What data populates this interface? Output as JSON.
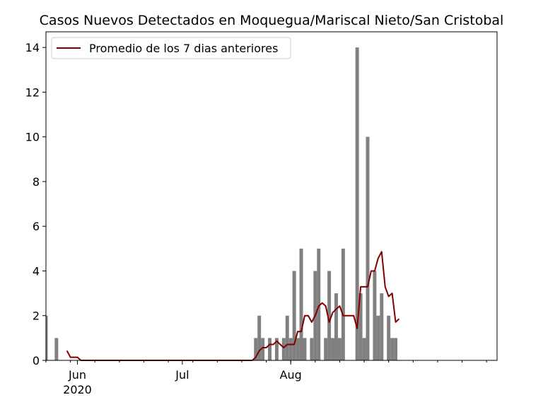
{
  "chart_data": {
    "type": "bar",
    "title": "Casos Nuevos Detectados en Moquegua/Mariscal Nieto/San Cristobal",
    "xlabel": "",
    "ylabel": "",
    "x_range": [
      "2020-05-23",
      "2020-09-29"
    ],
    "ylim": [
      0,
      14.7
    ],
    "y_ticks": [
      0,
      2,
      4,
      6,
      8,
      10,
      12,
      14
    ],
    "x_ticks": [
      {
        "date": "2020-06-01",
        "label": "Jun",
        "sublabel": "2020"
      },
      {
        "date": "2020-07-01",
        "label": "Jul",
        "sublabel": ""
      },
      {
        "date": "2020-08-01",
        "label": "Aug",
        "sublabel": ""
      }
    ],
    "x_minor_tick_step_days": 7,
    "grid": false,
    "legend_position": "upper-left",
    "bar_color": "#808080",
    "line_color": "#800000",
    "series": [
      {
        "kind": "bar",
        "points": [
          [
            "2020-05-23",
            2
          ],
          [
            "2020-05-26",
            1
          ],
          [
            "2020-07-22",
            1
          ],
          [
            "2020-07-23",
            2
          ],
          [
            "2020-07-24",
            1
          ],
          [
            "2020-07-26",
            1
          ],
          [
            "2020-07-28",
            1
          ],
          [
            "2020-07-30",
            1
          ],
          [
            "2020-07-31",
            2
          ],
          [
            "2020-08-01",
            1
          ],
          [
            "2020-08-02",
            4
          ],
          [
            "2020-08-03",
            1
          ],
          [
            "2020-08-04",
            5
          ],
          [
            "2020-08-05",
            1
          ],
          [
            "2020-08-07",
            1
          ],
          [
            "2020-08-08",
            4
          ],
          [
            "2020-08-09",
            5
          ],
          [
            "2020-08-11",
            1
          ],
          [
            "2020-08-12",
            4
          ],
          [
            "2020-08-13",
            1
          ],
          [
            "2020-08-14",
            3
          ],
          [
            "2020-08-15",
            1
          ],
          [
            "2020-08-16",
            5
          ],
          [
            "2020-08-20",
            14
          ],
          [
            "2020-08-21",
            3
          ],
          [
            "2020-08-22",
            1
          ],
          [
            "2020-08-23",
            10
          ],
          [
            "2020-08-25",
            4
          ],
          [
            "2020-08-26",
            2
          ],
          [
            "2020-08-27",
            3
          ],
          [
            "2020-08-29",
            2
          ],
          [
            "2020-08-30",
            1
          ],
          [
            "2020-08-31",
            1
          ]
        ]
      },
      {
        "kind": "line",
        "name": "Promedio de los 7 dias anteriores",
        "points": [
          [
            "2020-05-29",
            0.43
          ],
          [
            "2020-05-30",
            0.14
          ],
          [
            "2020-05-31",
            0.14
          ],
          [
            "2020-06-01",
            0.14
          ],
          [
            "2020-06-02",
            0.0
          ],
          [
            "2020-07-20",
            0.0
          ],
          [
            "2020-07-21",
            0.0
          ],
          [
            "2020-07-22",
            0.14
          ],
          [
            "2020-07-23",
            0.43
          ],
          [
            "2020-07-24",
            0.57
          ],
          [
            "2020-07-25",
            0.57
          ],
          [
            "2020-07-26",
            0.71
          ],
          [
            "2020-07-27",
            0.71
          ],
          [
            "2020-07-28",
            0.86
          ],
          [
            "2020-07-29",
            0.71
          ],
          [
            "2020-07-30",
            0.57
          ],
          [
            "2020-07-31",
            0.71
          ],
          [
            "2020-08-01",
            0.71
          ],
          [
            "2020-08-02",
            0.71
          ],
          [
            "2020-08-03",
            1.29
          ],
          [
            "2020-08-04",
            1.29
          ],
          [
            "2020-08-05",
            2.0
          ],
          [
            "2020-08-06",
            2.0
          ],
          [
            "2020-08-07",
            1.71
          ],
          [
            "2020-08-08",
            2.0
          ],
          [
            "2020-08-09",
            2.43
          ],
          [
            "2020-08-10",
            2.57
          ],
          [
            "2020-08-11",
            2.43
          ],
          [
            "2020-08-12",
            1.71
          ],
          [
            "2020-08-13",
            2.14
          ],
          [
            "2020-08-14",
            2.29
          ],
          [
            "2020-08-15",
            2.43
          ],
          [
            "2020-08-16",
            2.0
          ],
          [
            "2020-08-17",
            2.0
          ],
          [
            "2020-08-18",
            2.0
          ],
          [
            "2020-08-19",
            2.0
          ],
          [
            "2020-08-20",
            1.43
          ],
          [
            "2020-08-21",
            3.29
          ],
          [
            "2020-08-22",
            3.29
          ],
          [
            "2020-08-23",
            3.29
          ],
          [
            "2020-08-24",
            4.0
          ],
          [
            "2020-08-25",
            4.0
          ],
          [
            "2020-08-26",
            4.57
          ],
          [
            "2020-08-27",
            4.86
          ],
          [
            "2020-08-28",
            3.29
          ],
          [
            "2020-08-29",
            2.86
          ],
          [
            "2020-08-30",
            3.0
          ],
          [
            "2020-08-31",
            1.71
          ],
          [
            "2020-09-01",
            1.86
          ]
        ]
      }
    ]
  }
}
